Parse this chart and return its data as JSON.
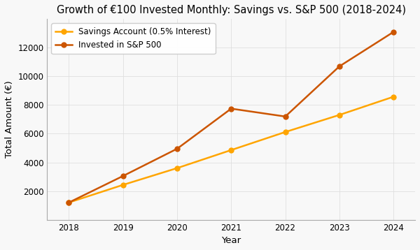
{
  "title": "Growth of €100 Invested Monthly: Savings vs. S&P 500 (2018-2024)",
  "xlabel": "Year",
  "ylabel": "Total Amount (€)",
  "years": [
    2018,
    2019,
    2020,
    2021,
    2022,
    2023,
    2024
  ],
  "savings": [
    1200,
    2430,
    3600,
    4860,
    6120,
    7310,
    8580
  ],
  "sp500": [
    1200,
    3050,
    4950,
    7750,
    7200,
    10700,
    13100
  ],
  "savings_color": "#FFA500",
  "sp500_color": "#CC5500",
  "savings_label": "Savings Account (0.5% Interest)",
  "sp500_label": "Invested in S&P 500",
  "background_color": "#f8f8f8",
  "ylim": [
    0,
    14000
  ],
  "yticks": [
    2000,
    4000,
    6000,
    8000,
    10000,
    12000
  ],
  "title_fontsize": 10.5,
  "axis_label_fontsize": 9.5,
  "legend_fontsize": 8.5,
  "linewidth": 1.8,
  "markersize": 5,
  "grid_color": "#dddddd",
  "grid_alpha": 0.8
}
